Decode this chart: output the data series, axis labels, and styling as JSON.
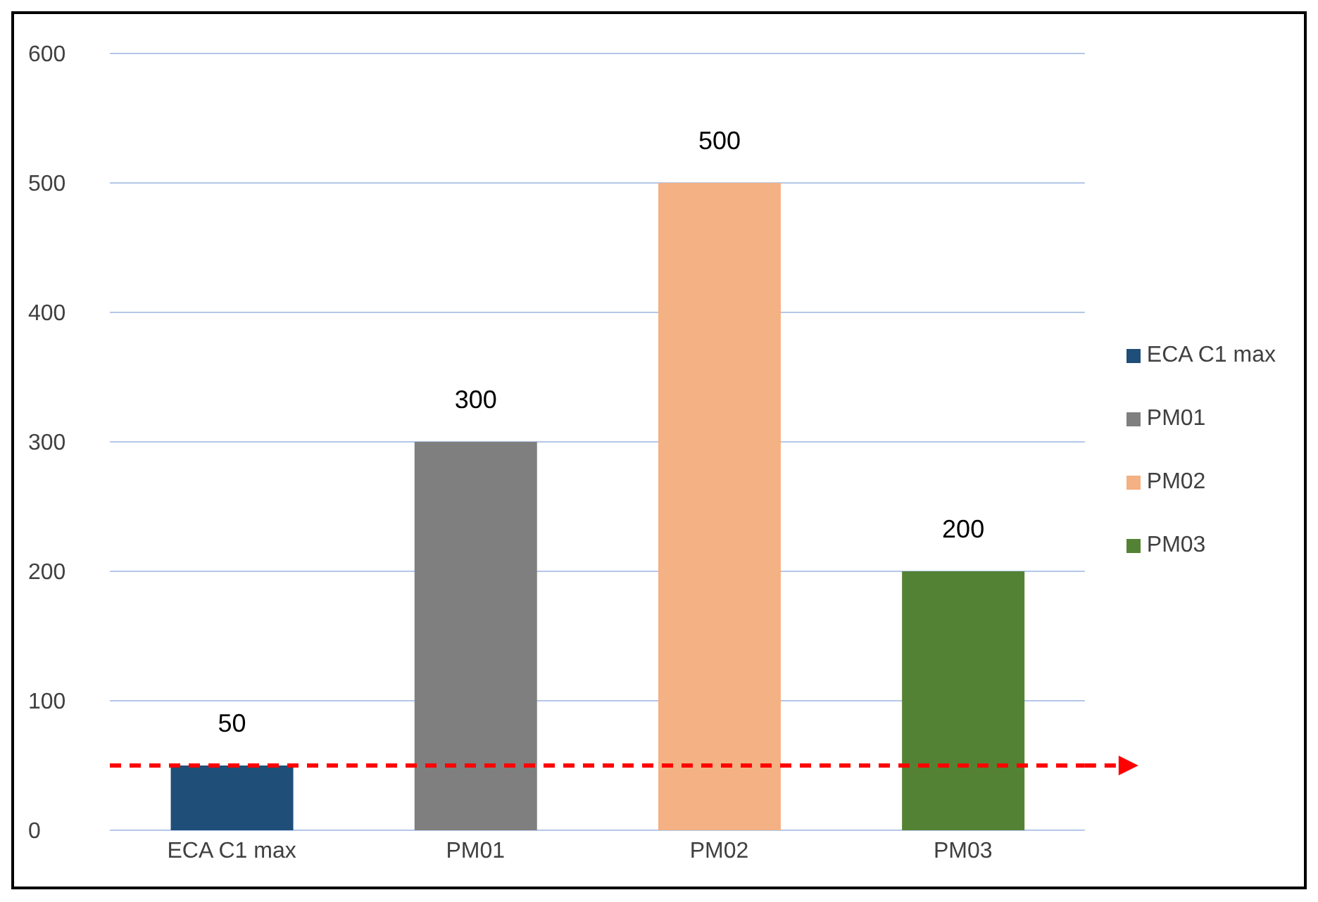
{
  "chart_data": {
    "type": "bar",
    "categories": [
      "ECA C1 max",
      "PM01",
      "PM02",
      "PM03"
    ],
    "series": [
      {
        "name": "ECA C1 max",
        "color": "#1f4e79",
        "values": [
          50,
          null,
          null,
          null
        ]
      },
      {
        "name": "PM01",
        "color": "#7f7f7f",
        "values": [
          null,
          300,
          null,
          null
        ]
      },
      {
        "name": "PM02",
        "color": "#f4b183",
        "values": [
          null,
          null,
          500,
          null
        ]
      },
      {
        "name": "PM03",
        "color": "#548235",
        "values": [
          null,
          null,
          null,
          200
        ]
      }
    ],
    "stacked": true,
    "ylim": [
      0,
      600
    ],
    "yticks": [
      0,
      100,
      200,
      300,
      400,
      500,
      600
    ],
    "grid": "y",
    "data_labels": true,
    "legend": "right",
    "ref_lines": [
      {
        "axis": "y",
        "value": 50,
        "color": "#ff0000",
        "line_style": "dashed"
      }
    ]
  }
}
